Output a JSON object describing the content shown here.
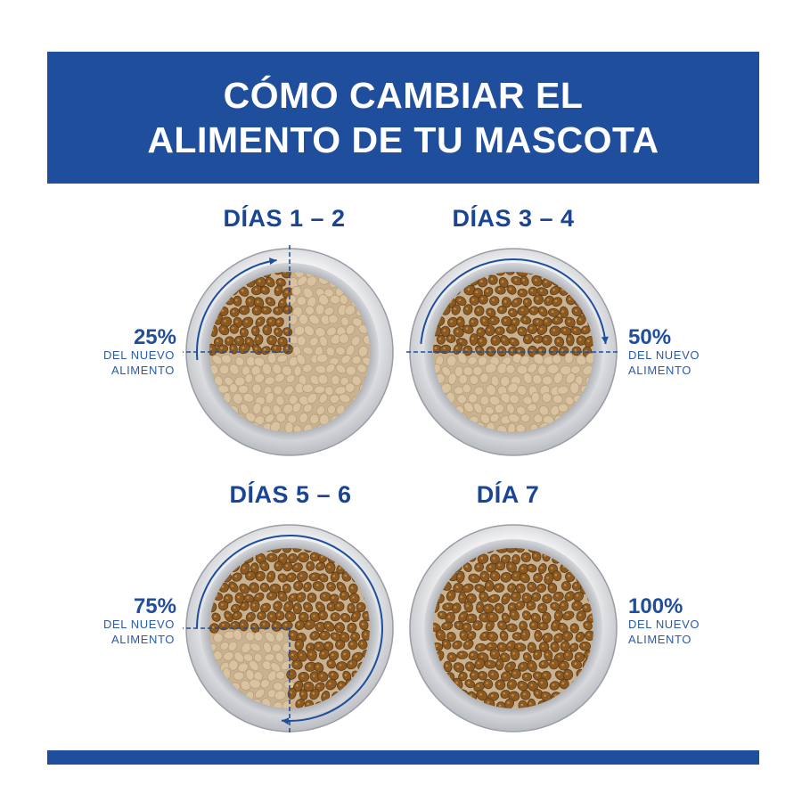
{
  "header": {
    "title_line1": "CÓMO CAMBIAR EL",
    "title_line2": "ALIMENTO DE TU MASCOTA"
  },
  "colors": {
    "brand_blue": "#1f4e9c",
    "text_blue": "#1a4594",
    "new_food": "#8a5a22",
    "old_food": "#d9c3a0"
  },
  "steps": [
    {
      "title": "DÍAS 1 – 2",
      "percent": "25%",
      "caption_line1": "DEL NUEVO",
      "caption_line2": "ALIMENTO",
      "new_food_fraction": 0.25
    },
    {
      "title": "DÍAS 3 – 4",
      "percent": "50%",
      "caption_line1": "DEL NUEVO",
      "caption_line2": "ALIMENTO",
      "new_food_fraction": 0.5
    },
    {
      "title": "DÍAS 5 – 6",
      "percent": "75%",
      "caption_line1": "DEL NUEVO",
      "caption_line2": "ALIMENTO",
      "new_food_fraction": 0.75
    },
    {
      "title": "DÍA 7",
      "percent": "100%",
      "caption_line1": "DEL NUEVO",
      "caption_line2": "ALIMENTO",
      "new_food_fraction": 1.0
    }
  ]
}
